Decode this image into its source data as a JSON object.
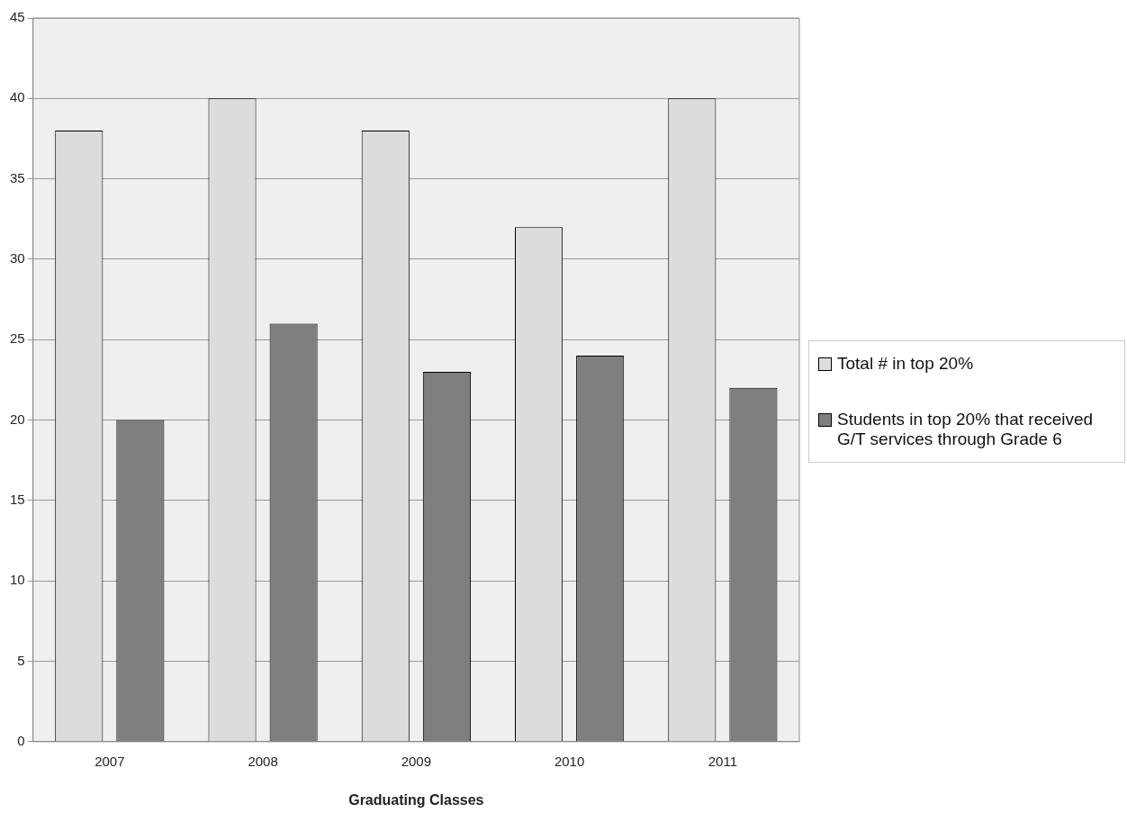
{
  "chart_data": {
    "type": "bar",
    "xlabel": "Graduating Classes",
    "categories": [
      "2007",
      "2008",
      "2009",
      "2010",
      "2011"
    ],
    "series": [
      {
        "name": "Total # in top 20%",
        "color": "#dcdcdc",
        "values": [
          38,
          40,
          38,
          32,
          40
        ]
      },
      {
        "name": "Students in top 20% that received G/T services through Grade 6",
        "color": "#7f7f7f",
        "values": [
          20,
          26,
          23,
          24,
          22
        ]
      }
    ],
    "ylim": [
      0,
      45
    ],
    "yticks": [
      0,
      5,
      10,
      15,
      20,
      25,
      30,
      35,
      40,
      45
    ],
    "grid": "y",
    "legend": "right"
  }
}
